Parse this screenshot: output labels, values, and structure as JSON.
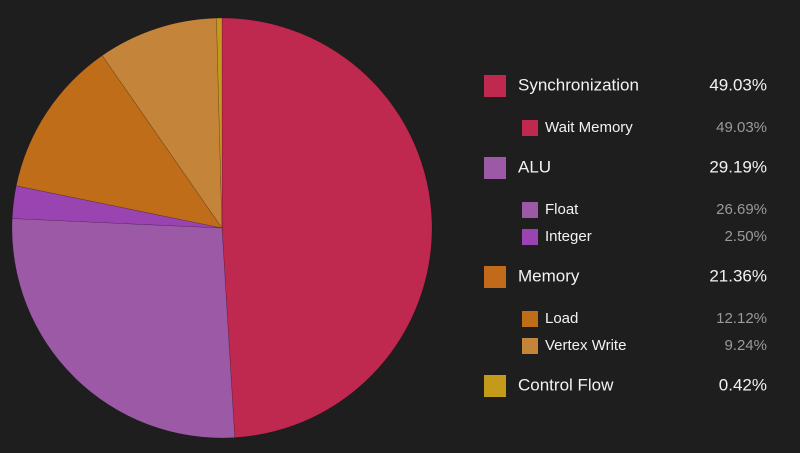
{
  "chart_data": {
    "type": "pie",
    "groups": [
      {
        "name": "Synchronization",
        "color": "#c0294f",
        "total": 49.03,
        "total_label": "49.03%",
        "categories": [
          "Wait Memory"
        ],
        "colors": [
          "#c0294f"
        ],
        "values": [
          49.03
        ],
        "value_labels": [
          "49.03%"
        ]
      },
      {
        "name": "ALU",
        "color": "#9b59a6",
        "total": 29.19,
        "total_label": "29.19%",
        "categories": [
          "Float",
          "Integer"
        ],
        "colors": [
          "#9b59a6",
          "#9944b0"
        ],
        "values": [
          26.69,
          2.5
        ],
        "value_labels": [
          "26.69%",
          "2.50%"
        ]
      },
      {
        "name": "Memory",
        "color": "#c06a1a",
        "total": 21.36,
        "total_label": "21.36%",
        "categories": [
          "Load",
          "Vertex Write"
        ],
        "colors": [
          "#c06d1a",
          "#c4843a"
        ],
        "values": [
          12.12,
          9.24
        ],
        "value_labels": [
          "12.12%",
          "9.24%"
        ]
      },
      {
        "name": "Control Flow",
        "color": "#c49a1a",
        "total": 0.42,
        "total_label": "0.42%",
        "categories": [],
        "colors": [],
        "values": [],
        "value_labels": []
      }
    ]
  }
}
